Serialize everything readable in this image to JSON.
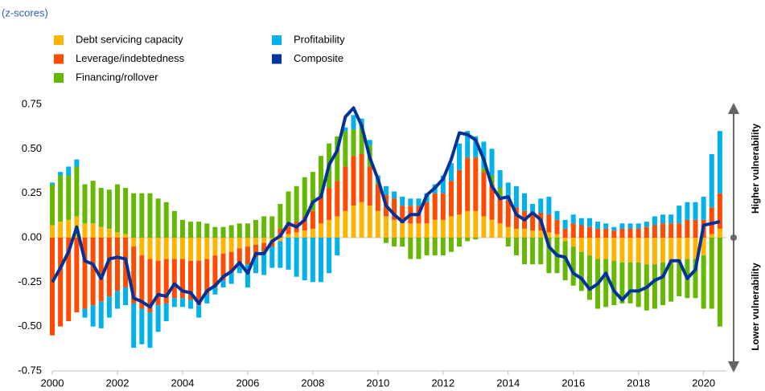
{
  "chart_data": {
    "type": "bar",
    "subtitle": "(z-scores)",
    "annotations": [
      "Higher vulnerability",
      "Lower vulnerability"
    ],
    "xlim": [
      2000,
      2020.7
    ],
    "xticks": [
      2000,
      2002,
      2004,
      2006,
      2008,
      2010,
      2012,
      2014,
      2016,
      2018,
      2020
    ],
    "ylim": [
      -0.75,
      0.75
    ],
    "yticks": [
      0.75,
      {
        "value": 0.5,
        "label": "0.50"
      },
      0.25,
      {
        "value": 0,
        "label": "0.00"
      },
      -0.25,
      {
        "value": -0.5,
        "label": "-0.50"
      },
      -0.75
    ],
    "x": [
      2000,
      2000.25,
      2000.5,
      2000.75,
      2001,
      2001.25,
      2001.5,
      2001.75,
      2002,
      2002.25,
      2002.5,
      2002.75,
      2003,
      2003.25,
      2003.5,
      2003.75,
      2004,
      2004.25,
      2004.5,
      2004.75,
      2005,
      2005.25,
      2005.5,
      2005.75,
      2006,
      2006.25,
      2006.5,
      2006.75,
      2007,
      2007.25,
      2007.5,
      2007.75,
      2008,
      2008.25,
      2008.5,
      2008.75,
      2009,
      2009.25,
      2009.5,
      2009.75,
      2010,
      2010.25,
      2010.5,
      2010.75,
      2011,
      2011.25,
      2011.5,
      2011.75,
      2012,
      2012.25,
      2012.5,
      2012.75,
      2013,
      2013.25,
      2013.5,
      2013.75,
      2014,
      2014.25,
      2014.5,
      2014.75,
      2015,
      2015.25,
      2015.5,
      2015.75,
      2016,
      2016.25,
      2016.5,
      2016.75,
      2017,
      2017.25,
      2017.5,
      2017.75,
      2018,
      2018.25,
      2018.5,
      2018.75,
      2019,
      2019.25,
      2019.5,
      2019.75,
      2020,
      2020.25,
      2020.5
    ],
    "series": [
      {
        "name": "Debt servicing capacity",
        "color": "#ffb400",
        "values": [
          0.07,
          0.09,
          0.1,
          0.12,
          0.08,
          0.08,
          0.06,
          0.05,
          0.03,
          0.02,
          -0.05,
          -0.1,
          -0.12,
          -0.13,
          -0.12,
          -0.12,
          -0.12,
          -0.13,
          -0.13,
          -0.12,
          -0.1,
          -0.09,
          -0.08,
          -0.06,
          -0.05,
          -0.04,
          -0.03,
          -0.02,
          -0.02,
          0.02,
          0.03,
          0.04,
          0.05,
          0.08,
          0.1,
          0.12,
          0.15,
          0.18,
          0.2,
          0.18,
          0.15,
          0.12,
          0.1,
          0.08,
          0.08,
          0.08,
          0.08,
          0.1,
          0.1,
          0.12,
          0.13,
          0.15,
          0.15,
          0.12,
          0.1,
          0.08,
          0.06,
          0.05,
          0.05,
          0.04,
          0.04,
          0.03,
          0.02,
          -0.02,
          -0.05,
          -0.08,
          -0.1,
          -0.12,
          -0.12,
          -0.13,
          -0.14,
          -0.14,
          -0.14,
          -0.15,
          -0.15,
          -0.14,
          -0.14,
          -0.13,
          -0.12,
          -0.12,
          -0.1,
          0.02,
          0.05
        ]
      },
      {
        "name": "Leverage/indebtedness",
        "color": "#ff4b00",
        "values": [
          -0.55,
          -0.5,
          -0.47,
          -0.42,
          -0.4,
          -0.38,
          -0.36,
          -0.33,
          -0.3,
          -0.28,
          -0.32,
          -0.3,
          -0.3,
          -0.25,
          -0.25,
          -0.22,
          -0.22,
          -0.22,
          -0.25,
          -0.2,
          -0.18,
          -0.15,
          -0.12,
          -0.1,
          -0.1,
          -0.07,
          -0.05,
          -0.03,
          0.05,
          0.06,
          0.06,
          0.08,
          0.1,
          0.15,
          0.18,
          0.2,
          0.25,
          0.28,
          0.27,
          0.22,
          0.15,
          0.12,
          0.12,
          0.1,
          0.1,
          0.1,
          0.12,
          0.15,
          0.15,
          0.2,
          0.25,
          0.3,
          0.3,
          0.25,
          0.2,
          0.15,
          0.15,
          0.12,
          0.1,
          0.1,
          0.1,
          0.1,
          0.08,
          0.05,
          0.08,
          0.07,
          0.06,
          0.05,
          0.05,
          0.04,
          0.05,
          0.05,
          0.05,
          0.06,
          0.07,
          0.08,
          0.08,
          0.08,
          0.1,
          0.1,
          0.1,
          0.15,
          0.2
        ]
      },
      {
        "name": "Financing/rollover",
        "color": "#65b800",
        "values": [
          0.23,
          0.26,
          0.25,
          0.28,
          0.22,
          0.24,
          0.22,
          0.22,
          0.27,
          0.26,
          0.25,
          0.25,
          0.25,
          0.22,
          0.2,
          0.15,
          0.1,
          0.09,
          0.09,
          0.08,
          0.06,
          0.06,
          0.07,
          0.08,
          0.08,
          0.1,
          0.12,
          0.12,
          0.14,
          0.18,
          0.2,
          0.22,
          0.22,
          0.23,
          0.25,
          0.25,
          0.2,
          0.15,
          0.15,
          0.12,
          0.02,
          -0.03,
          -0.05,
          -0.05,
          -0.12,
          -0.12,
          -0.1,
          -0.1,
          -0.1,
          -0.08,
          -0.05,
          -0.02,
          -0.01,
          0.02,
          0.05,
          0.05,
          -0.05,
          -0.1,
          -0.15,
          -0.15,
          -0.15,
          -0.2,
          -0.2,
          -0.22,
          -0.22,
          -0.22,
          -0.25,
          -0.28,
          -0.27,
          -0.25,
          -0.23,
          -0.23,
          -0.25,
          -0.26,
          -0.25,
          -0.24,
          -0.22,
          -0.2,
          -0.22,
          -0.22,
          -0.3,
          -0.4,
          -0.5
        ]
      },
      {
        "name": "Profitability",
        "color": "#00b1ea",
        "values": [
          0.01,
          0.02,
          0.05,
          0.04,
          -0.05,
          -0.12,
          -0.15,
          -0.12,
          -0.1,
          -0.1,
          -0.25,
          -0.2,
          -0.2,
          -0.15,
          -0.1,
          -0.05,
          -0.05,
          -0.05,
          -0.07,
          -0.05,
          -0.04,
          -0.04,
          -0.06,
          -0.04,
          -0.13,
          -0.09,
          -0.13,
          -0.12,
          -0.15,
          -0.18,
          -0.22,
          -0.24,
          -0.25,
          -0.25,
          -0.2,
          -0.1,
          0.02,
          0.08,
          0.05,
          0.03,
          0.03,
          0.05,
          0.04,
          0.05,
          0.04,
          0.04,
          0.05,
          0.05,
          0.1,
          0.1,
          0.15,
          0.15,
          0.12,
          0.15,
          0.15,
          0.1,
          0.1,
          0.12,
          0.1,
          0.05,
          0.08,
          0.1,
          0.05,
          0.05,
          0.05,
          0.04,
          0.05,
          0.04,
          0.03,
          0.02,
          0.03,
          0.03,
          0.03,
          0.03,
          0.05,
          0.05,
          0.05,
          0.1,
          0.1,
          0.1,
          0.13,
          0.3,
          0.35
        ]
      },
      {
        "name": "Composite",
        "color": "#003299",
        "type": "line",
        "values": [
          -0.25,
          -0.17,
          -0.08,
          0.06,
          -0.13,
          -0.15,
          -0.23,
          -0.12,
          -0.11,
          -0.12,
          -0.34,
          -0.36,
          -0.39,
          -0.32,
          -0.33,
          -0.26,
          -0.3,
          -0.31,
          -0.37,
          -0.3,
          -0.27,
          -0.22,
          -0.19,
          -0.14,
          -0.2,
          -0.09,
          -0.09,
          -0.02,
          0.01,
          0.08,
          0.06,
          0.1,
          0.2,
          0.23,
          0.41,
          0.49,
          0.68,
          0.73,
          0.63,
          0.45,
          0.33,
          0.18,
          0.13,
          0.09,
          0.13,
          0.13,
          0.24,
          0.28,
          0.33,
          0.44,
          0.59,
          0.58,
          0.55,
          0.44,
          0.29,
          0.22,
          0.23,
          0.13,
          0.1,
          0.14,
          0.1,
          -0.05,
          -0.1,
          -0.11,
          -0.2,
          -0.23,
          -0.29,
          -0.26,
          -0.2,
          -0.3,
          -0.35,
          -0.3,
          -0.3,
          -0.28,
          -0.24,
          -0.22,
          -0.13,
          -0.13,
          -0.23,
          -0.18,
          0.07,
          0.08,
          0.09
        ]
      }
    ]
  }
}
